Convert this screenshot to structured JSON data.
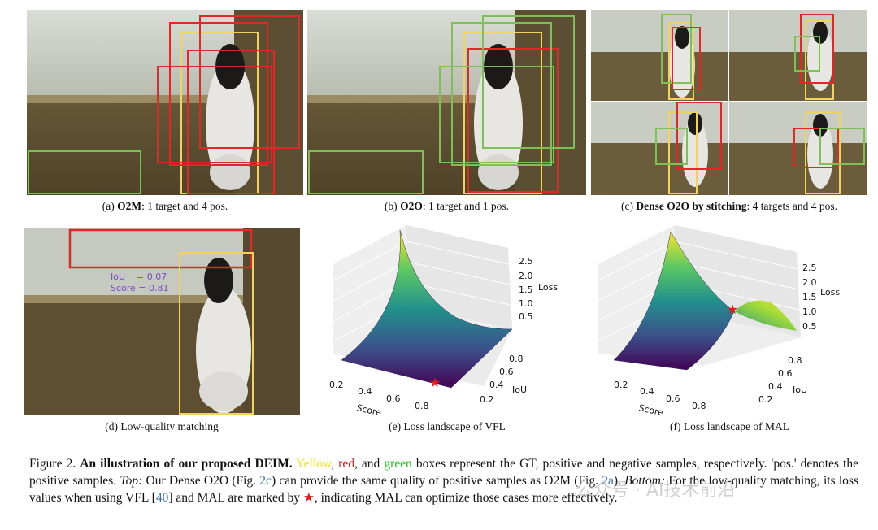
{
  "panels": {
    "a": {
      "caption_prefix": "(a) ",
      "caption_bold": "O2M",
      "caption_rest": ": 1 target and 4 pos."
    },
    "b": {
      "caption_prefix": "(b) ",
      "caption_bold": "O2O",
      "caption_rest": ": 1 target and 1 pos."
    },
    "c": {
      "caption_prefix": "(c) ",
      "caption_bold": "Dense O2O by stitching",
      "caption_rest": ": 4 targets and 4 pos."
    },
    "d": {
      "caption": "(d) Low-quality matching",
      "iou_text": "IoU    = 0.07",
      "score_text": "Score = 0.81"
    },
    "e": {
      "caption": "(e) Loss landscape of VFL"
    },
    "f": {
      "caption": "(f) Loss landscape of MAL"
    }
  },
  "box_colors": {
    "gt": "#f3d35a",
    "positive": "#e32626",
    "negative": "#7cc153"
  },
  "plots": {
    "vfl": {
      "z_label": "Loss",
      "x_label": "Score",
      "y_label": "IoU",
      "z_ticks": [
        "0.5",
        "1.0",
        "1.5",
        "2.0",
        "2.5"
      ],
      "x_ticks": [
        "0.2",
        "0.4",
        "0.6",
        "0.8"
      ],
      "y_ticks": [
        "0.2",
        "0.4",
        "0.6",
        "0.8"
      ]
    },
    "mal": {
      "z_label": "Loss",
      "x_label": "Score",
      "y_label": "IoU",
      "z_ticks": [
        "0.5",
        "1.0",
        "1.5",
        "2.0",
        "2.5"
      ],
      "x_ticks": [
        "0.2",
        "0.4",
        "0.6",
        "0.8"
      ],
      "y_ticks": [
        "0.2",
        "0.4",
        "0.6",
        "0.8"
      ]
    }
  },
  "figure_caption": {
    "label": "Figure 2. ",
    "title": "An illustration of our proposed DEIM.",
    "yellow": "Yellow",
    "sep1": ", ",
    "red": "red",
    "sep2": ", and ",
    "green": "green",
    "part1": " boxes represent the GT, positive and negative samples, respectively. 'pos.' denotes the positive samples. ",
    "top_label": "Top:",
    "part2": " Our Dense O2O (Fig. ",
    "ref_2c": "2c",
    "part3": ") can provide the same quality of positive samples as O2M (Fig. ",
    "ref_2a": "2a",
    "part4": "). ",
    "bottom_label": "Bottom:",
    "part5": " For the low-quality matching, its loss values when using VFL [",
    "ref_40": "40",
    "part6": "] and MAL are marked by ",
    "star": "★",
    "part7": ", indicating MAL can optimize those cases more effectively."
  },
  "watermark": "公众号 · AI技术前沿"
}
